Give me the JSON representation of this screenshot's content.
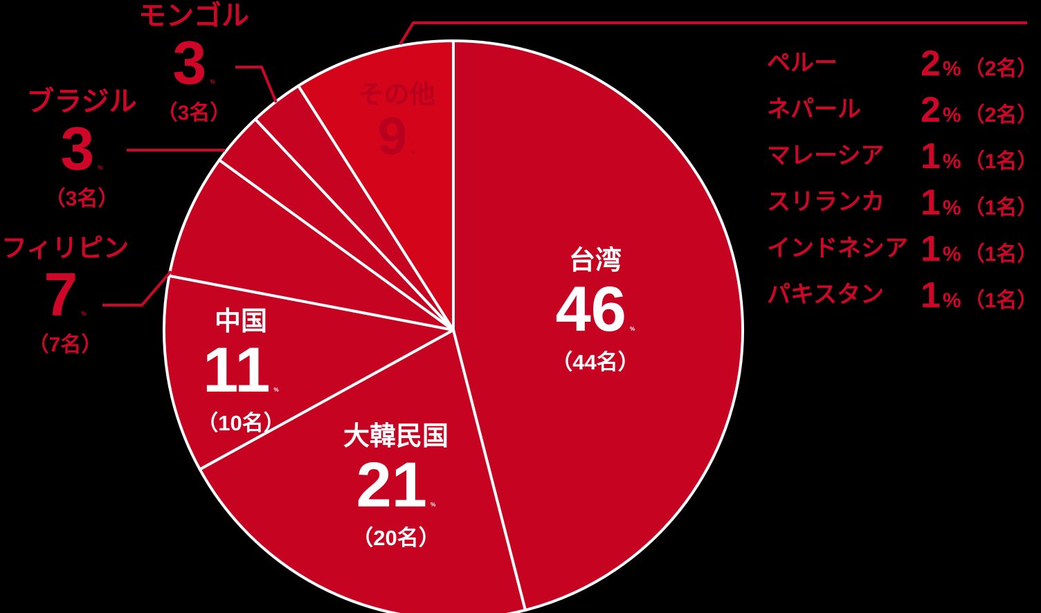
{
  "percent_sign": "%",
  "colors": {
    "background": "#000000",
    "slice_main": "#c60321",
    "slice_others": "#d4041a",
    "slice_border": "#ffffff",
    "inside_label": "#ffffff",
    "others_inside_label": "#b8001e",
    "callout_label": "#cf0627",
    "leader_line": "#cf0627"
  },
  "chart_data": {
    "type": "pie",
    "legend_position": "none",
    "start_angle": "top, clockwise",
    "slices": [
      {
        "id": "taiwan",
        "label": "台湾",
        "percent": 46,
        "count_display": "（44名）",
        "color_key": "slice_main",
        "placement": "inside"
      },
      {
        "id": "korea",
        "label": "大韓民国",
        "percent": 21,
        "count_display": "（20名）",
        "color_key": "slice_main",
        "placement": "inside"
      },
      {
        "id": "china",
        "label": "中国",
        "percent": 11,
        "count_display": "（10名）",
        "color_key": "slice_main",
        "placement": "inside"
      },
      {
        "id": "philippines",
        "label": "フィリピン",
        "percent": 7,
        "count_display": "（7名）",
        "color_key": "slice_main",
        "placement": "callout"
      },
      {
        "id": "brazil",
        "label": "ブラジル",
        "percent": 3,
        "count_display": "（3名）",
        "color_key": "slice_main",
        "placement": "callout"
      },
      {
        "id": "mongolia",
        "label": "モンゴル",
        "percent": 3,
        "count_display": "（3名）",
        "color_key": "slice_main",
        "placement": "callout"
      },
      {
        "id": "others",
        "label": "その他",
        "percent": 9,
        "count_display": "",
        "color_key": "slice_others",
        "placement": "inside"
      }
    ],
    "others_breakdown": [
      {
        "label": "ペルー",
        "percent": 2,
        "count_display": "（2名）"
      },
      {
        "label": "ネパール",
        "percent": 2,
        "count_display": "（2名）"
      },
      {
        "label": "マレーシア",
        "percent": 1,
        "count_display": "（1名）"
      },
      {
        "label": "スリランカ",
        "percent": 1,
        "count_display": "（1名）"
      },
      {
        "label": "インドネシア",
        "percent": 1,
        "count_display": "（1名）"
      },
      {
        "label": "パキスタン",
        "percent": 1,
        "count_display": "（1名）"
      }
    ]
  }
}
